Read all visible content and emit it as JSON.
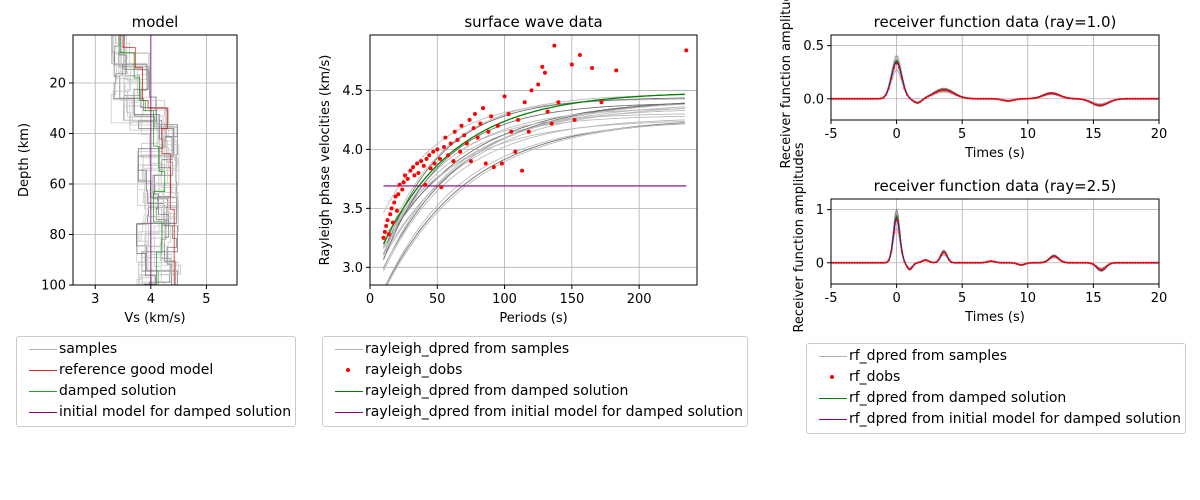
{
  "chart_data": [
    {
      "type": "line",
      "title": "model",
      "xlabel": "Vs (km/s)",
      "ylabel": "Depth (km)",
      "xlim": [
        2.6,
        5.55
      ],
      "ylim": [
        100,
        1
      ],
      "yinverted": true,
      "xticks": [
        3,
        4,
        5
      ],
      "yticks": [
        20,
        40,
        60,
        80,
        100
      ],
      "grid": true,
      "series": [
        {
          "name": "samples",
          "color": "#b0b0b0",
          "style": "step",
          "count": 16
        },
        {
          "name": "reference good model",
          "color": "#d62728",
          "steps": [
            [
              3.5,
              1
            ],
            [
              3.72,
              6
            ],
            [
              3.85,
              14
            ],
            [
              3.95,
              27
            ],
            [
              4.3,
              30
            ],
            [
              4.2,
              38
            ],
            [
              4.35,
              48
            ],
            [
              4.42,
              70
            ],
            [
              4.55,
              100
            ]
          ]
        },
        {
          "name": "damped solution",
          "color": "#2ca02c",
          "steps": [
            [
              3.45,
              1
            ],
            [
              3.7,
              8
            ],
            [
              3.8,
              18
            ],
            [
              3.9,
              27
            ],
            [
              4.05,
              31
            ],
            [
              4.15,
              45
            ],
            [
              4.25,
              55
            ],
            [
              4.05,
              63
            ],
            [
              4.2,
              75
            ],
            [
              4.1,
              87
            ],
            [
              4.15,
              100
            ]
          ]
        },
        {
          "name": "initial model for damped solution",
          "color": "#800080",
          "steps": [
            [
              4.0,
              1
            ],
            [
              4.0,
              100
            ]
          ]
        }
      ]
    },
    {
      "type": "scatter",
      "title": "surface wave data",
      "xlabel": "Periods (s)",
      "ylabel": "Rayleigh phase velocities (km/s)",
      "xlim": [
        0,
        243
      ],
      "ylim": [
        2.85,
        4.97
      ],
      "xticks": [
        0,
        50,
        100,
        150,
        200
      ],
      "yticks": [
        3.0,
        3.5,
        4.0,
        4.5
      ],
      "grid": true,
      "series": [
        {
          "name": "rayleigh_dpred from samples",
          "color": "#999999",
          "style": "curves",
          "count": 18
        },
        {
          "name": "rayleigh_dobs",
          "color": "#ff0000",
          "points": [
            [
              10,
              3.25
            ],
            [
              11,
              3.3
            ],
            [
              12,
              3.35
            ],
            [
              13,
              3.4
            ],
            [
              14,
              3.28
            ],
            [
              15,
              3.45
            ],
            [
              16,
              3.5
            ],
            [
              17,
              3.38
            ],
            [
              18,
              3.55
            ],
            [
              19,
              3.6
            ],
            [
              20,
              3.48
            ],
            [
              21,
              3.62
            ],
            [
              22,
              3.7
            ],
            [
              24,
              3.66
            ],
            [
              25,
              3.72
            ],
            [
              26,
              3.78
            ],
            [
              28,
              3.75
            ],
            [
              30,
              3.82
            ],
            [
              32,
              3.85
            ],
            [
              33,
              3.78
            ],
            [
              35,
              3.88
            ],
            [
              36,
              3.8
            ],
            [
              38,
              3.9
            ],
            [
              40,
              3.86
            ],
            [
              41,
              3.7
            ],
            [
              42,
              3.92
            ],
            [
              44,
              3.95
            ],
            [
              45,
              3.84
            ],
            [
              47,
              3.98
            ],
            [
              48,
              3.88
            ],
            [
              50,
              4.0
            ],
            [
              52,
              3.92
            ],
            [
              53,
              3.68
            ],
            [
              55,
              4.02
            ],
            [
              56,
              4.1
            ],
            [
              58,
              3.95
            ],
            [
              60,
              4.05
            ],
            [
              62,
              3.9
            ],
            [
              63,
              4.15
            ],
            [
              65,
              4.08
            ],
            [
              67,
              3.98
            ],
            [
              68,
              4.2
            ],
            [
              70,
              4.12
            ],
            [
              72,
              4.05
            ],
            [
              74,
              4.25
            ],
            [
              75,
              3.9
            ],
            [
              77,
              4.18
            ],
            [
              78,
              4.3
            ],
            [
              80,
              4.1
            ],
            [
              82,
              4.22
            ],
            [
              84,
              4.35
            ],
            [
              86,
              3.88
            ],
            [
              88,
              4.15
            ],
            [
              90,
              4.28
            ],
            [
              92,
              3.85
            ],
            [
              95,
              4.2
            ],
            [
              98,
              3.88
            ],
            [
              100,
              4.45
            ],
            [
              103,
              4.3
            ],
            [
              105,
              4.15
            ],
            [
              108,
              3.98
            ],
            [
              110,
              4.25
            ],
            [
              113,
              3.82
            ],
            [
              115,
              4.4
            ],
            [
              118,
              4.15
            ],
            [
              120,
              4.5
            ],
            [
              125,
              4.55
            ],
            [
              128,
              4.7
            ],
            [
              130,
              4.65
            ],
            [
              132,
              4.32
            ],
            [
              135,
              4.22
            ],
            [
              137,
              4.88
            ],
            [
              140,
              4.4
            ],
            [
              150,
              4.72
            ],
            [
              152,
              4.25
            ],
            [
              156,
              4.8
            ],
            [
              165,
              4.69
            ],
            [
              172,
              4.4
            ],
            [
              183,
              4.67
            ],
            [
              235,
              4.84
            ]
          ]
        },
        {
          "name": "rayleigh_dpred from damped solution",
          "color": "#008000"
        },
        {
          "name": "rayleigh_dpred from initial model for damped solution",
          "color": "#800080",
          "value": 3.69
        }
      ]
    },
    {
      "type": "line",
      "title": "receiver function data (ray=1.0)",
      "xlabel": "Times (s)",
      "ylabel": "Receiver function amplitudes",
      "xlim": [
        -5,
        20
      ],
      "ylim": [
        -0.2,
        0.6
      ],
      "xticks": [
        -5,
        0,
        5,
        10,
        15,
        20
      ],
      "yticks": [
        0.0,
        0.5
      ],
      "grid": true,
      "peaks": [
        [
          0,
          0.33,
          0.55
        ],
        [
          3.6,
          0.08,
          1.1
        ],
        [
          11.8,
          0.05,
          0.9
        ],
        [
          15.5,
          -0.06,
          0.9
        ],
        [
          1.6,
          -0.04,
          0.45
        ],
        [
          8.5,
          -0.02,
          0.6
        ]
      ]
    },
    {
      "type": "line",
      "title": "receiver function data (ray=2.5)",
      "xlabel": "Times (s)",
      "ylabel": "Receiver function amplitudes",
      "xlim": [
        -5,
        20
      ],
      "ylim": [
        -0.4,
        1.2
      ],
      "xticks": [
        -5,
        0,
        5,
        10,
        15,
        20
      ],
      "yticks": [
        0,
        1
      ],
      "grid": true,
      "peaks": [
        [
          0,
          0.8,
          0.35
        ],
        [
          1.0,
          -0.12,
          0.3
        ],
        [
          3.6,
          0.2,
          0.35
        ],
        [
          2.2,
          0.05,
          0.35
        ],
        [
          12.0,
          0.12,
          0.5
        ],
        [
          15.6,
          -0.13,
          0.5
        ],
        [
          9.5,
          -0.04,
          0.4
        ],
        [
          7.2,
          0.03,
          0.4
        ]
      ]
    }
  ],
  "legends": {
    "model": [
      "samples",
      "reference good model",
      "damped solution",
      "initial model for damped solution"
    ],
    "surface": [
      "rayleigh_dpred from samples",
      "rayleigh_dobs",
      "rayleigh_dpred from damped solution",
      "rayleigh_dpred from initial model for damped solution"
    ],
    "rf": [
      "rf_dpred from samples",
      "rf_dobs",
      "rf_dpred from damped solution",
      "rf_dpred from initial model for damped solution"
    ]
  },
  "colors": {
    "samples": "#b0b0b0",
    "reference": "#d62728",
    "damped": "#2ca02c",
    "damped_dark": "#008000",
    "initial": "#800080",
    "observed": "#ff0000",
    "grid": "#b0b0b0"
  }
}
